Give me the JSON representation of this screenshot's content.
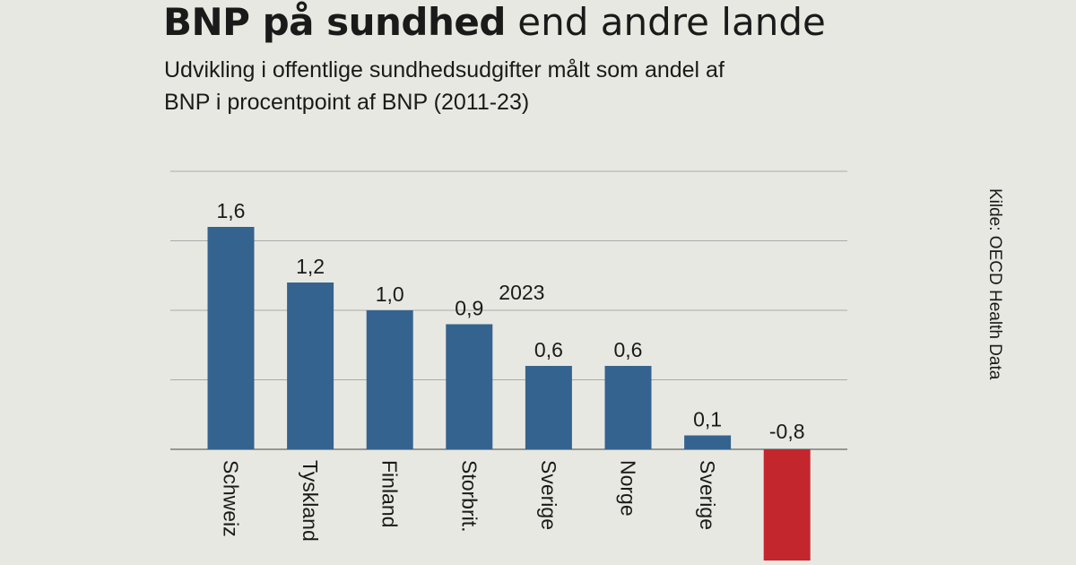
{
  "header": {
    "title_bold": "BNP på sundhed",
    "title_normal": "end andre lande",
    "subtitle": "Udvikling i offentlige sundhedsudgifter målt som andel af BNP i procentpoint af BNP (2011-23)"
  },
  "source": "Kilde: OECD Health Data",
  "annotation": "2023",
  "colors": {
    "bar": "#35638f",
    "negative": "#c4262e",
    "grid": "#aaaaaa"
  },
  "chart_data": {
    "type": "bar",
    "title": "BNP på sundhed end andre lande",
    "categories": [
      "Schweiz",
      "Tyskland",
      "Finland",
      "Storbrit.",
      "Sverige",
      "Norge",
      "Sverige",
      ""
    ],
    "values": [
      1.6,
      1.2,
      1.0,
      0.9,
      0.6,
      0.6,
      0.1,
      -0.8
    ],
    "value_labels": [
      "1,6",
      "1,2",
      "1,0",
      "0,9",
      "0,6",
      "0,6",
      "0,1",
      "-0,8"
    ],
    "ylim": [
      -0.8,
      2.0
    ],
    "grid": true,
    "xlabel": "",
    "ylabel": ""
  }
}
